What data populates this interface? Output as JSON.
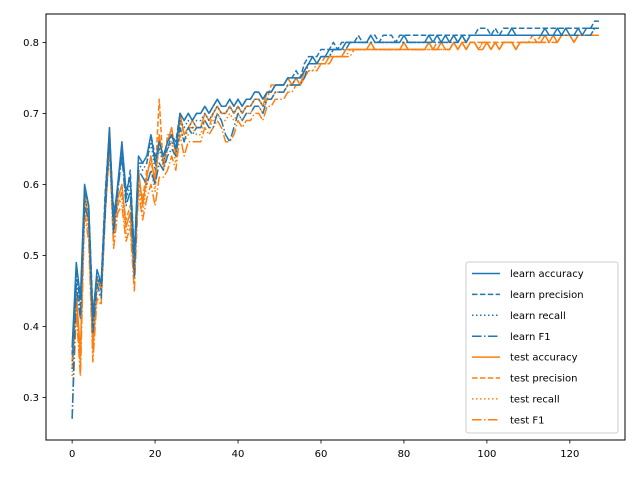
{
  "chart_data": {
    "type": "line",
    "title": "",
    "xlabel": "",
    "ylabel": "",
    "xlim": [
      -6.3,
      133.3
    ],
    "ylim": [
      0.24,
      0.84
    ],
    "xticks": [
      0,
      20,
      40,
      60,
      80,
      100,
      120
    ],
    "yticks": [
      0.3,
      0.4,
      0.5,
      0.6,
      0.7,
      0.8
    ],
    "xtick_labels": [
      "0",
      "20",
      "40",
      "60",
      "80",
      "100",
      "120"
    ],
    "ytick_labels": [
      "0.3",
      "0.4",
      "0.5",
      "0.6",
      "0.7",
      "0.8"
    ],
    "grid": false,
    "legend_position": "lower-right",
    "colors": {
      "learn": "#1f77b4",
      "test": "#ff7f0e",
      "axes": "#000000"
    },
    "x": [
      0,
      1,
      2,
      3,
      4,
      5,
      6,
      7,
      8,
      9,
      10,
      11,
      12,
      13,
      14,
      15,
      16,
      17,
      18,
      19,
      20,
      21,
      22,
      23,
      24,
      25,
      26,
      27,
      28,
      29,
      30,
      31,
      32,
      33,
      34,
      35,
      36,
      37,
      38,
      39,
      40,
      41,
      42,
      43,
      44,
      45,
      46,
      47,
      48,
      49,
      50,
      51,
      52,
      53,
      54,
      55,
      56,
      57,
      58,
      59,
      60,
      61,
      62,
      63,
      64,
      65,
      66,
      67,
      68,
      69,
      70,
      71,
      72,
      73,
      74,
      75,
      76,
      77,
      78,
      79,
      80,
      81,
      82,
      83,
      84,
      85,
      86,
      87,
      88,
      89,
      90,
      91,
      92,
      93,
      94,
      95,
      96,
      97,
      98,
      99,
      100,
      101,
      102,
      103,
      104,
      105,
      106,
      107,
      108,
      109,
      110,
      111,
      112,
      113,
      114,
      115,
      116,
      117,
      118,
      119,
      120,
      121,
      122,
      123,
      124,
      125,
      126,
      127
    ],
    "series": [
      {
        "name": "learn accuracy",
        "group": "learn",
        "dash": "solid",
        "values": [
          0.37,
          0.49,
          0.44,
          0.6,
          0.57,
          0.41,
          0.48,
          0.46,
          0.58,
          0.68,
          0.55,
          0.6,
          0.66,
          0.59,
          0.61,
          0.5,
          0.64,
          0.63,
          0.64,
          0.67,
          0.63,
          0.66,
          0.64,
          0.66,
          0.67,
          0.65,
          0.7,
          0.69,
          0.7,
          0.69,
          0.7,
          0.7,
          0.71,
          0.7,
          0.71,
          0.72,
          0.71,
          0.71,
          0.72,
          0.71,
          0.72,
          0.71,
          0.72,
          0.72,
          0.73,
          0.73,
          0.72,
          0.73,
          0.73,
          0.74,
          0.74,
          0.74,
          0.75,
          0.75,
          0.75,
          0.75,
          0.76,
          0.77,
          0.78,
          0.77,
          0.78,
          0.78,
          0.79,
          0.79,
          0.79,
          0.79,
          0.8,
          0.8,
          0.8,
          0.8,
          0.8,
          0.8,
          0.81,
          0.8,
          0.8,
          0.8,
          0.8,
          0.8,
          0.8,
          0.8,
          0.81,
          0.8,
          0.8,
          0.8,
          0.8,
          0.8,
          0.81,
          0.8,
          0.81,
          0.8,
          0.81,
          0.8,
          0.81,
          0.8,
          0.81,
          0.8,
          0.81,
          0.81,
          0.81,
          0.81,
          0.81,
          0.81,
          0.81,
          0.81,
          0.81,
          0.81,
          0.82,
          0.81,
          0.81,
          0.81,
          0.81,
          0.81,
          0.81,
          0.81,
          0.82,
          0.81,
          0.81,
          0.82,
          0.81,
          0.82,
          0.81,
          0.81,
          0.82,
          0.81,
          0.82,
          0.82,
          0.82,
          0.82
        ]
      },
      {
        "name": "learn precision",
        "group": "learn",
        "dash": "dashed",
        "values": [
          0.36,
          0.48,
          0.43,
          0.59,
          0.57,
          0.42,
          0.47,
          0.46,
          0.59,
          0.67,
          0.56,
          0.59,
          0.65,
          0.58,
          0.62,
          0.5,
          0.63,
          0.63,
          0.63,
          0.67,
          0.64,
          0.65,
          0.64,
          0.65,
          0.67,
          0.66,
          0.7,
          0.69,
          0.7,
          0.69,
          0.7,
          0.7,
          0.71,
          0.7,
          0.71,
          0.72,
          0.71,
          0.71,
          0.72,
          0.71,
          0.72,
          0.71,
          0.72,
          0.72,
          0.73,
          0.73,
          0.72,
          0.73,
          0.73,
          0.74,
          0.74,
          0.74,
          0.75,
          0.75,
          0.76,
          0.75,
          0.77,
          0.78,
          0.78,
          0.78,
          0.79,
          0.79,
          0.79,
          0.8,
          0.79,
          0.8,
          0.8,
          0.8,
          0.8,
          0.81,
          0.8,
          0.8,
          0.81,
          0.81,
          0.8,
          0.81,
          0.81,
          0.81,
          0.8,
          0.81,
          0.81,
          0.81,
          0.81,
          0.81,
          0.81,
          0.81,
          0.81,
          0.81,
          0.81,
          0.81,
          0.81,
          0.81,
          0.81,
          0.81,
          0.81,
          0.81,
          0.81,
          0.81,
          0.82,
          0.82,
          0.82,
          0.81,
          0.82,
          0.81,
          0.82,
          0.82,
          0.82,
          0.82,
          0.82,
          0.82,
          0.82,
          0.82,
          0.82,
          0.82,
          0.82,
          0.82,
          0.82,
          0.82,
          0.82,
          0.82,
          0.82,
          0.82,
          0.82,
          0.82,
          0.82,
          0.82,
          0.83,
          0.83
        ]
      },
      {
        "name": "learn recall",
        "group": "learn",
        "dash": "dotted",
        "values": [
          0.34,
          0.47,
          0.42,
          0.58,
          0.56,
          0.4,
          0.47,
          0.45,
          0.57,
          0.67,
          0.54,
          0.6,
          0.65,
          0.58,
          0.6,
          0.49,
          0.63,
          0.62,
          0.63,
          0.66,
          0.62,
          0.65,
          0.63,
          0.65,
          0.66,
          0.65,
          0.69,
          0.68,
          0.69,
          0.68,
          0.69,
          0.69,
          0.7,
          0.69,
          0.7,
          0.71,
          0.7,
          0.7,
          0.71,
          0.7,
          0.71,
          0.7,
          0.71,
          0.71,
          0.72,
          0.72,
          0.71,
          0.72,
          0.72,
          0.73,
          0.73,
          0.73,
          0.74,
          0.74,
          0.75,
          0.75,
          0.76,
          0.77,
          0.77,
          0.77,
          0.78,
          0.78,
          0.78,
          0.79,
          0.79,
          0.79,
          0.8,
          0.8,
          0.8,
          0.8,
          0.8,
          0.8,
          0.8,
          0.8,
          0.8,
          0.8,
          0.8,
          0.8,
          0.8,
          0.8,
          0.8,
          0.8,
          0.8,
          0.8,
          0.8,
          0.8,
          0.8,
          0.8,
          0.8,
          0.8,
          0.8,
          0.8,
          0.81,
          0.8,
          0.81,
          0.8,
          0.81,
          0.81,
          0.81,
          0.81,
          0.81,
          0.81,
          0.81,
          0.81,
          0.81,
          0.81,
          0.81,
          0.81,
          0.81,
          0.81,
          0.81,
          0.81,
          0.81,
          0.81,
          0.81,
          0.81,
          0.81,
          0.81,
          0.81,
          0.81,
          0.81,
          0.81,
          0.81,
          0.81,
          0.81,
          0.81,
          0.82,
          0.82
        ]
      },
      {
        "name": "learn F1",
        "group": "learn",
        "dash": "dashdot",
        "values": [
          0.27,
          0.46,
          0.41,
          0.57,
          0.55,
          0.39,
          0.46,
          0.44,
          0.56,
          0.66,
          0.53,
          0.59,
          0.64,
          0.57,
          0.59,
          0.47,
          0.62,
          0.61,
          0.6,
          0.62,
          0.6,
          0.63,
          0.62,
          0.64,
          0.65,
          0.64,
          0.68,
          0.66,
          0.68,
          0.67,
          0.68,
          0.68,
          0.69,
          0.68,
          0.68,
          0.7,
          0.69,
          0.67,
          0.66,
          0.68,
          0.7,
          0.69,
          0.7,
          0.7,
          0.71,
          0.71,
          0.7,
          0.72,
          0.72,
          0.73,
          0.73,
          0.73,
          0.74,
          0.74,
          0.74,
          0.74,
          0.75,
          0.77,
          0.77,
          0.77,
          0.78,
          0.78,
          0.78,
          0.79,
          0.79,
          0.79,
          0.79,
          0.8,
          0.8,
          0.8,
          0.8,
          0.8,
          0.8,
          0.8,
          0.8,
          0.8,
          0.8,
          0.8,
          0.8,
          0.8,
          0.8,
          0.8,
          0.8,
          0.8,
          0.8,
          0.8,
          0.8,
          0.8,
          0.8,
          0.8,
          0.8,
          0.8,
          0.8,
          0.8,
          0.81,
          0.8,
          0.81,
          0.81,
          0.81,
          0.81,
          0.81,
          0.81,
          0.81,
          0.81,
          0.81,
          0.81,
          0.81,
          0.81,
          0.81,
          0.81,
          0.81,
          0.81,
          0.81,
          0.81,
          0.81,
          0.81,
          0.81,
          0.81,
          0.81,
          0.81,
          0.81,
          0.81,
          0.81,
          0.81,
          0.81,
          0.81,
          0.82,
          0.82
        ]
      },
      {
        "name": "test accuracy",
        "group": "test",
        "dash": "solid",
        "values": [
          0.35,
          0.45,
          0.36,
          0.59,
          0.55,
          0.37,
          0.47,
          0.45,
          0.58,
          0.68,
          0.53,
          0.58,
          0.6,
          0.54,
          0.56,
          0.47,
          0.62,
          0.57,
          0.61,
          0.64,
          0.6,
          0.67,
          0.63,
          0.66,
          0.68,
          0.64,
          0.7,
          0.67,
          0.68,
          0.69,
          0.68,
          0.68,
          0.7,
          0.69,
          0.7,
          0.71,
          0.7,
          0.7,
          0.71,
          0.7,
          0.71,
          0.7,
          0.71,
          0.71,
          0.72,
          0.72,
          0.71,
          0.73,
          0.73,
          0.74,
          0.74,
          0.74,
          0.75,
          0.74,
          0.75,
          0.74,
          0.76,
          0.77,
          0.77,
          0.77,
          0.77,
          0.77,
          0.78,
          0.78,
          0.78,
          0.78,
          0.79,
          0.79,
          0.79,
          0.79,
          0.79,
          0.79,
          0.8,
          0.79,
          0.79,
          0.79,
          0.79,
          0.79,
          0.79,
          0.79,
          0.8,
          0.79,
          0.79,
          0.79,
          0.79,
          0.79,
          0.8,
          0.79,
          0.79,
          0.8,
          0.79,
          0.79,
          0.8,
          0.79,
          0.8,
          0.79,
          0.8,
          0.8,
          0.79,
          0.79,
          0.8,
          0.79,
          0.8,
          0.79,
          0.8,
          0.8,
          0.8,
          0.79,
          0.8,
          0.8,
          0.8,
          0.8,
          0.8,
          0.8,
          0.81,
          0.8,
          0.81,
          0.8,
          0.81,
          0.81,
          0.81,
          0.8,
          0.81,
          0.81,
          0.81,
          0.81,
          0.81,
          0.81
        ]
      },
      {
        "name": "test precision",
        "group": "test",
        "dash": "dashed",
        "values": [
          0.34,
          0.44,
          0.35,
          0.58,
          0.54,
          0.38,
          0.46,
          0.46,
          0.59,
          0.67,
          0.54,
          0.57,
          0.59,
          0.55,
          0.57,
          0.48,
          0.6,
          0.58,
          0.62,
          0.63,
          0.61,
          0.72,
          0.62,
          0.67,
          0.67,
          0.65,
          0.69,
          0.67,
          0.68,
          0.68,
          0.68,
          0.68,
          0.69,
          0.68,
          0.7,
          0.71,
          0.7,
          0.7,
          0.71,
          0.7,
          0.71,
          0.7,
          0.71,
          0.71,
          0.72,
          0.72,
          0.71,
          0.72,
          0.74,
          0.74,
          0.74,
          0.74,
          0.75,
          0.74,
          0.75,
          0.74,
          0.76,
          0.77,
          0.77,
          0.77,
          0.77,
          0.78,
          0.78,
          0.78,
          0.78,
          0.78,
          0.79,
          0.79,
          0.79,
          0.79,
          0.79,
          0.79,
          0.8,
          0.79,
          0.79,
          0.79,
          0.79,
          0.79,
          0.79,
          0.79,
          0.8,
          0.79,
          0.79,
          0.79,
          0.79,
          0.79,
          0.8,
          0.79,
          0.8,
          0.8,
          0.8,
          0.8,
          0.8,
          0.8,
          0.8,
          0.8,
          0.8,
          0.8,
          0.8,
          0.8,
          0.8,
          0.8,
          0.8,
          0.8,
          0.8,
          0.8,
          0.8,
          0.8,
          0.8,
          0.8,
          0.8,
          0.81,
          0.8,
          0.81,
          0.81,
          0.81,
          0.81,
          0.81,
          0.81,
          0.81,
          0.81,
          0.81,
          0.81,
          0.81,
          0.81,
          0.81,
          0.81,
          0.81
        ]
      },
      {
        "name": "test recall",
        "group": "test",
        "dash": "dotted",
        "values": [
          0.33,
          0.43,
          0.34,
          0.57,
          0.53,
          0.36,
          0.45,
          0.44,
          0.57,
          0.66,
          0.52,
          0.57,
          0.58,
          0.53,
          0.55,
          0.46,
          0.6,
          0.56,
          0.6,
          0.62,
          0.59,
          0.66,
          0.62,
          0.65,
          0.66,
          0.63,
          0.68,
          0.66,
          0.67,
          0.68,
          0.67,
          0.67,
          0.69,
          0.68,
          0.69,
          0.7,
          0.69,
          0.69,
          0.7,
          0.69,
          0.7,
          0.69,
          0.7,
          0.7,
          0.71,
          0.71,
          0.7,
          0.72,
          0.72,
          0.73,
          0.73,
          0.73,
          0.74,
          0.74,
          0.74,
          0.74,
          0.75,
          0.76,
          0.76,
          0.77,
          0.77,
          0.77,
          0.77,
          0.78,
          0.78,
          0.78,
          0.78,
          0.79,
          0.79,
          0.79,
          0.79,
          0.79,
          0.79,
          0.79,
          0.79,
          0.79,
          0.79,
          0.79,
          0.79,
          0.79,
          0.79,
          0.79,
          0.79,
          0.79,
          0.79,
          0.79,
          0.79,
          0.79,
          0.79,
          0.79,
          0.79,
          0.79,
          0.8,
          0.79,
          0.8,
          0.79,
          0.8,
          0.8,
          0.79,
          0.8,
          0.8,
          0.79,
          0.8,
          0.79,
          0.8,
          0.8,
          0.8,
          0.79,
          0.8,
          0.8,
          0.8,
          0.8,
          0.8,
          0.8,
          0.8,
          0.8,
          0.8,
          0.8,
          0.81,
          0.81,
          0.81,
          0.8,
          0.81,
          0.81,
          0.81,
          0.81,
          0.81,
          0.81
        ]
      },
      {
        "name": "test F1",
        "group": "test",
        "dash": "dashdot",
        "values": [
          0.27,
          0.42,
          0.33,
          0.56,
          0.52,
          0.35,
          0.44,
          0.43,
          0.56,
          0.65,
          0.51,
          0.56,
          0.57,
          0.52,
          0.54,
          0.45,
          0.59,
          0.55,
          0.58,
          0.6,
          0.57,
          0.61,
          0.61,
          0.62,
          0.64,
          0.62,
          0.67,
          0.64,
          0.66,
          0.66,
          0.66,
          0.66,
          0.68,
          0.67,
          0.68,
          0.69,
          0.68,
          0.66,
          0.66,
          0.67,
          0.69,
          0.68,
          0.69,
          0.69,
          0.7,
          0.7,
          0.69,
          0.71,
          0.71,
          0.72,
          0.72,
          0.72,
          0.73,
          0.73,
          0.74,
          0.74,
          0.75,
          0.76,
          0.76,
          0.76,
          0.77,
          0.77,
          0.77,
          0.78,
          0.78,
          0.78,
          0.78,
          0.78,
          0.79,
          0.79,
          0.79,
          0.79,
          0.79,
          0.79,
          0.79,
          0.79,
          0.79,
          0.79,
          0.79,
          0.79,
          0.79,
          0.79,
          0.79,
          0.79,
          0.79,
          0.79,
          0.79,
          0.79,
          0.79,
          0.79,
          0.79,
          0.79,
          0.8,
          0.79,
          0.8,
          0.79,
          0.8,
          0.8,
          0.79,
          0.8,
          0.8,
          0.79,
          0.8,
          0.79,
          0.8,
          0.8,
          0.8,
          0.79,
          0.8,
          0.8,
          0.8,
          0.8,
          0.8,
          0.8,
          0.8,
          0.8,
          0.8,
          0.8,
          0.81,
          0.81,
          0.81,
          0.8,
          0.81,
          0.81,
          0.81,
          0.81,
          0.81,
          0.81
        ]
      }
    ]
  }
}
